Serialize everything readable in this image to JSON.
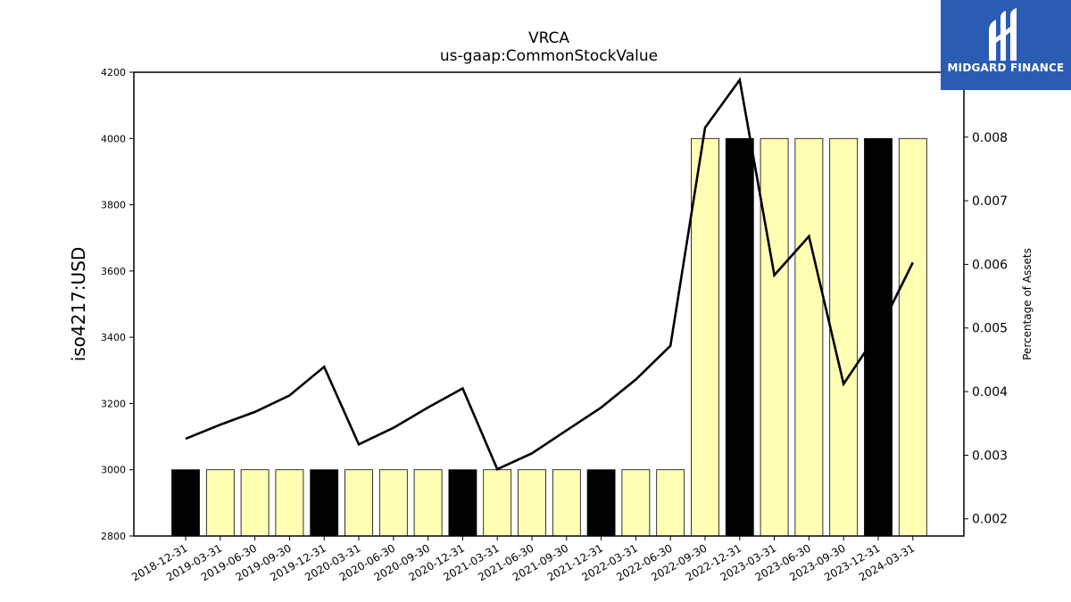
{
  "chart_data": {
    "type": "bar",
    "title": "VRCA",
    "subtitle": "us-gaap:CommonStockValue",
    "ylabel": "iso4217:USD",
    "ylabel_right": "Percentage of Assets",
    "ylim": [
      2800,
      4200
    ],
    "ylim_right": [
      0.00173,
      0.00902
    ],
    "yticks": [
      2800,
      3000,
      3200,
      3400,
      3600,
      3800,
      4000,
      4200
    ],
    "yticks_right": [
      "0.002",
      "0.003",
      "0.004",
      "0.005",
      "0.006",
      "0.007",
      "0.008"
    ],
    "categories": [
      "2018-12-31",
      "2019-03-31",
      "2019-06-30",
      "2019-09-30",
      "2019-12-31",
      "2020-03-31",
      "2020-06-30",
      "2020-09-30",
      "2020-12-31",
      "2021-03-31",
      "2021-06-30",
      "2021-09-30",
      "2021-12-31",
      "2022-03-31",
      "2022-06-30",
      "2022-09-30",
      "2022-12-31",
      "2023-03-31",
      "2023-06-30",
      "2023-09-30",
      "2023-12-31",
      "2024-03-31"
    ],
    "series": [
      {
        "type": "bar",
        "axis": "left",
        "values": [
          3000,
          3000,
          3000,
          3000,
          3000,
          3000,
          3000,
          3000,
          3000,
          3000,
          3000,
          3000,
          3000,
          3000,
          3000,
          4000,
          4000,
          4000,
          4000,
          4000,
          4000,
          4000
        ],
        "colors": [
          "#000000",
          "#ffffb3",
          "#ffffb3",
          "#ffffb3",
          "#000000",
          "#ffffb3",
          "#ffffb3",
          "#ffffb3",
          "#000000",
          "#ffffb3",
          "#ffffb3",
          "#ffffb3",
          "#000000",
          "#ffffb3",
          "#ffffb3",
          "#ffffb3",
          "#000000",
          "#ffffb3",
          "#ffffb3",
          "#ffffb3",
          "#000000",
          "#ffffb3"
        ]
      },
      {
        "type": "line",
        "axis": "right",
        "color": "#000000",
        "values": [
          0.00326,
          0.00348,
          0.00368,
          0.00394,
          0.00439,
          0.00317,
          0.00343,
          0.00375,
          0.00405,
          0.00278,
          0.00303,
          0.00339,
          0.00375,
          0.00419,
          0.00472,
          0.00815,
          0.0089,
          0.00583,
          0.00644,
          0.00412,
          0.00493,
          0.00603
        ]
      }
    ],
    "grid": false,
    "legend": "none"
  },
  "logo": {
    "text": "MIDGARD FINANCE",
    "icon": "midgard-logo-icon",
    "background": "#2a5cb4"
  }
}
